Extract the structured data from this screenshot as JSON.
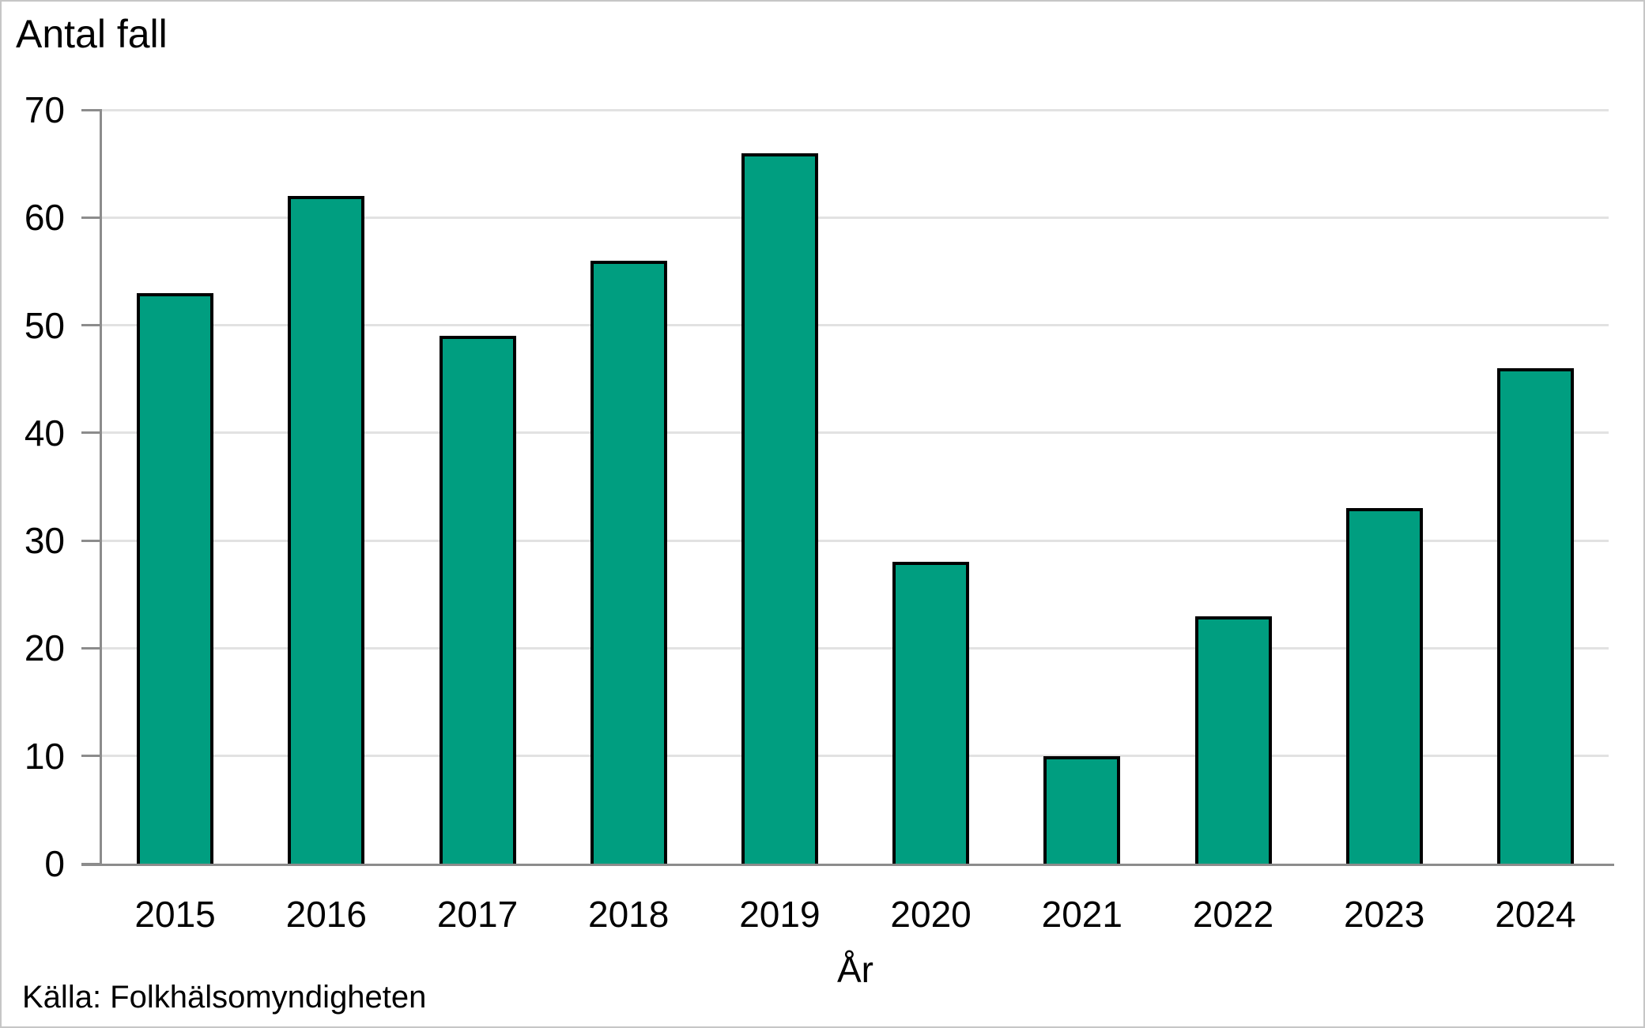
{
  "title": "Antal fall",
  "source": "Källa: Folkhälsomyndigheten",
  "chart_data": {
    "type": "bar",
    "title": "Antal fall",
    "categories": [
      "2015",
      "2016",
      "2017",
      "2018",
      "2019",
      "2020",
      "2021",
      "2022",
      "2023",
      "2024"
    ],
    "values": [
      53,
      62,
      49,
      56,
      66,
      28,
      10,
      23,
      33,
      46
    ],
    "xlabel": "År",
    "ylabel": "Antal fall",
    "ylim": [
      0,
      70
    ],
    "yticks": [
      0,
      10,
      20,
      30,
      40,
      50,
      60,
      70
    ],
    "grid": "horizontal",
    "legend": "none",
    "source": "Källa: Folkhälsomyndigheten",
    "colors": {
      "bar_fill": "#009E80",
      "bar_border": "#000000",
      "gridline": "#e2e2e2",
      "axis": "#8c8c8c",
      "text": "#000000",
      "frame": "#c6c6c6",
      "background": "#ffffff"
    }
  }
}
